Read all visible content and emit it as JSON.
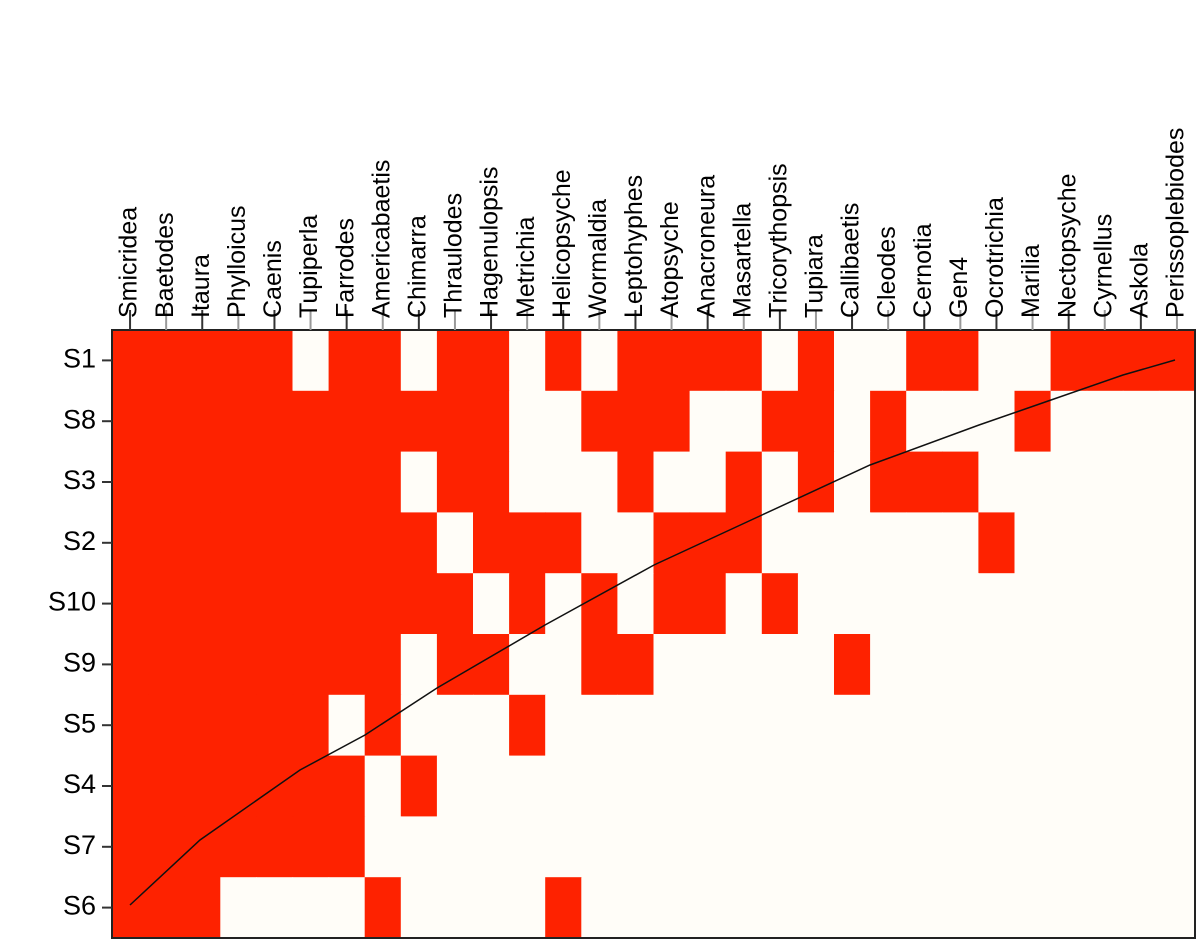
{
  "chart_data": {
    "type": "heatmap",
    "columns": [
      "Smicridea",
      "Baetodes",
      "Itaura",
      "Phylloicus",
      "Caenis",
      "Tupiperla",
      "Farrodes",
      "Americabaetis",
      "Chimarra",
      "Thraulodes",
      "Hagenulopsis",
      "Metrichia",
      "Helicopsyche",
      "Wormaldia",
      "Leptohyphes",
      "Atopsyche",
      "Anacroneura",
      "Masartella",
      "Tricorythopsis",
      "Tupiara",
      "Callibaetis",
      "Cleodes",
      "Cernotia",
      "Gen4",
      "Ocrotrichia",
      "Marilia",
      "Nectopsyche",
      "Cyrnellus",
      "Askola",
      "Perissoplebiodes"
    ],
    "rows": [
      "S1",
      "S8",
      "S3",
      "S2",
      "S10",
      "S9",
      "S5",
      "S4",
      "S7",
      "S6"
    ],
    "values": [
      [
        1,
        1,
        1,
        1,
        1,
        0,
        1,
        1,
        0,
        1,
        1,
        0,
        1,
        0,
        1,
        1,
        1,
        1,
        0,
        1,
        0,
        0,
        1,
        1,
        0,
        0,
        1,
        1,
        1,
        1
      ],
      [
        1,
        1,
        1,
        1,
        1,
        1,
        1,
        1,
        1,
        1,
        1,
        0,
        0,
        1,
        1,
        1,
        0,
        0,
        1,
        1,
        0,
        1,
        0,
        0,
        0,
        1,
        0,
        0,
        0,
        0
      ],
      [
        1,
        1,
        1,
        1,
        1,
        1,
        1,
        1,
        0,
        1,
        1,
        0,
        0,
        0,
        1,
        0,
        0,
        1,
        0,
        1,
        0,
        1,
        1,
        1,
        0,
        0,
        0,
        0,
        0,
        0
      ],
      [
        1,
        1,
        1,
        1,
        1,
        1,
        1,
        1,
        1,
        0,
        1,
        1,
        1,
        0,
        0,
        1,
        1,
        1,
        0,
        0,
        0,
        0,
        0,
        0,
        1,
        0,
        0,
        0,
        0,
        0
      ],
      [
        1,
        1,
        1,
        1,
        1,
        1,
        1,
        1,
        1,
        1,
        0,
        1,
        0,
        1,
        0,
        1,
        1,
        0,
        1,
        0,
        0,
        0,
        0,
        0,
        0,
        0,
        0,
        0,
        0,
        0
      ],
      [
        1,
        1,
        1,
        1,
        1,
        1,
        1,
        1,
        0,
        1,
        1,
        0,
        0,
        1,
        1,
        0,
        0,
        0,
        0,
        0,
        1,
        0,
        0,
        0,
        0,
        0,
        0,
        0,
        0,
        0
      ],
      [
        1,
        1,
        1,
        1,
        1,
        1,
        0,
        1,
        0,
        0,
        0,
        1,
        0,
        0,
        0,
        0,
        0,
        0,
        0,
        0,
        0,
        0,
        0,
        0,
        0,
        0,
        0,
        0,
        0,
        0
      ],
      [
        1,
        1,
        1,
        1,
        1,
        1,
        1,
        0,
        1,
        0,
        0,
        0,
        0,
        0,
        0,
        0,
        0,
        0,
        0,
        0,
        0,
        0,
        0,
        0,
        0,
        0,
        0,
        0,
        0,
        0
      ],
      [
        1,
        1,
        1,
        1,
        1,
        1,
        1,
        0,
        0,
        0,
        0,
        0,
        0,
        0,
        0,
        0,
        0,
        0,
        0,
        0,
        0,
        0,
        0,
        0,
        0,
        0,
        0,
        0,
        0,
        0
      ],
      [
        1,
        1,
        1,
        0,
        0,
        0,
        0,
        1,
        0,
        0,
        0,
        0,
        1,
        0,
        0,
        0,
        0,
        0,
        0,
        0,
        0,
        0,
        0,
        0,
        0,
        0,
        0,
        0,
        0,
        0
      ]
    ],
    "color": "#fe2200",
    "empty_color": "#fffdf8"
  }
}
